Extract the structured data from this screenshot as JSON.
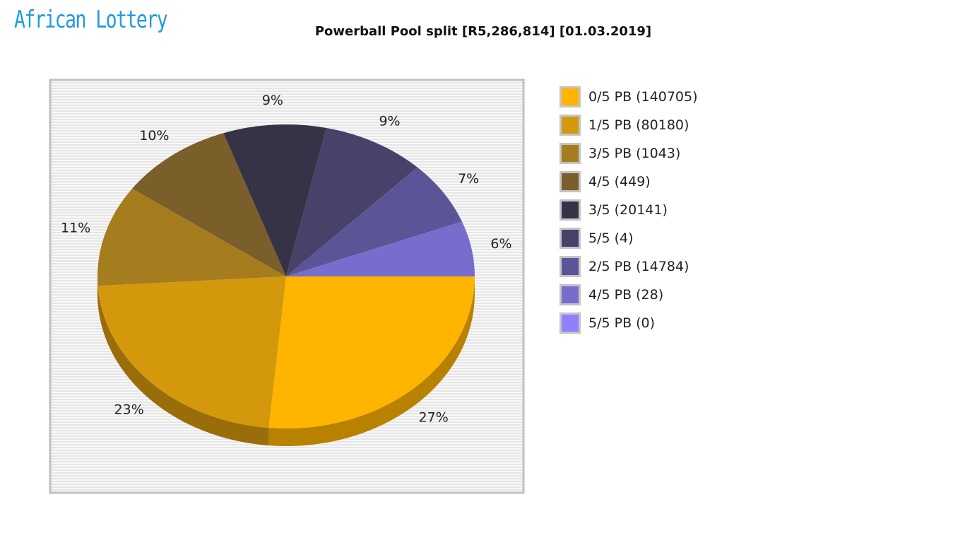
{
  "logo": {
    "text": "African Lottery"
  },
  "chart_data": {
    "type": "pie",
    "title": "Powerball Pool split [R5,286,814] [01.03.2019]",
    "slices": [
      {
        "label": "0/5 PB (140705)",
        "percent": 27,
        "color": "#FFB400"
      },
      {
        "label": "1/5 PB (80180)",
        "percent": 23,
        "color": "#D4980C"
      },
      {
        "label": "3/5 PB (1043)",
        "percent": 11,
        "color": "#A67D1E"
      },
      {
        "label": "4/5 (449)",
        "percent": 10,
        "color": "#7A5F2B"
      },
      {
        "label": "3/5 (20141)",
        "percent": 9,
        "color": "#373347"
      },
      {
        "label": "5/5 (4)",
        "percent": 9,
        "color": "#48416A"
      },
      {
        "label": "2/5 PB (14784)",
        "percent": 7,
        "color": "#5B5598"
      },
      {
        "label": "4/5 PB (28)",
        "percent": 6,
        "color": "#786DCC"
      },
      {
        "label": "5/5 PB (0)",
        "percent": 0,
        "color": "#9080FF"
      }
    ],
    "legend_position": "right",
    "style": "3d"
  }
}
